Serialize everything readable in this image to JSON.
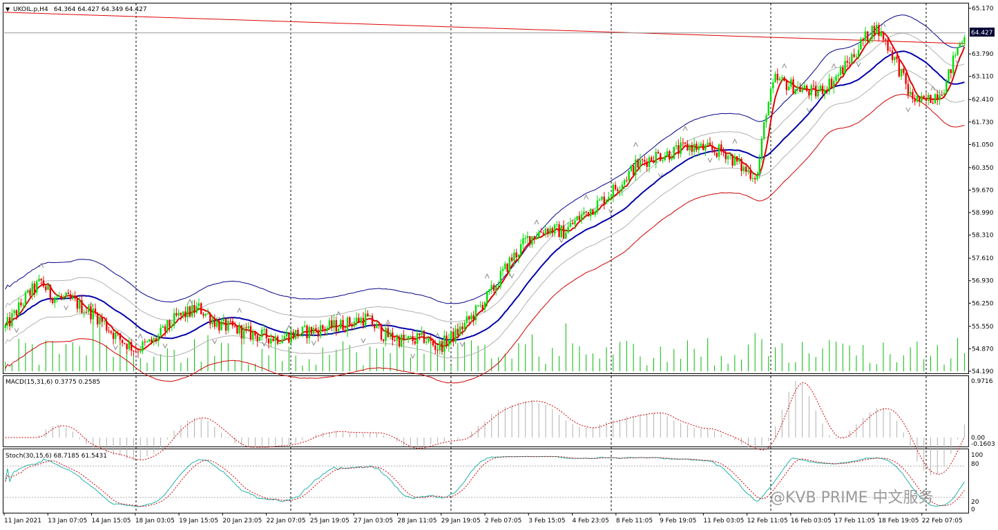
{
  "header": {
    "symbol": "UKOIL.p,H4",
    "ohlc": "64.364 64.427 64.349 64.427",
    "current_price": "64.427"
  },
  "indicators": {
    "macd_label": "MACD(15,31,6) 0.3775 0.2585",
    "stoch_label": "Stoch(30,15,6) 68.7185 61.5431",
    "macd_levels": [
      "0.9716",
      "0.00",
      "-0.1603"
    ],
    "stoch_levels": [
      "100",
      "80",
      "20",
      "0"
    ]
  },
  "watermark": "@KVB PRIME 中文服务",
  "colors": {
    "bull": "#00dd00",
    "bear": "#ee0000",
    "ma_fast": "#dd0000",
    "ma_slow": "#0000aa",
    "band_outer_upper": "#000088",
    "band_outer_lower": "#cc0000",
    "band_inner": "#b0b0b0",
    "volume": "#00bb00",
    "trendline": "#dd0000",
    "stoch_main": "#20b2aa",
    "signal": "#cc0000"
  },
  "chart_data": {
    "type": "candlestick",
    "y_axis_ticks": [
      "65.170",
      "64.427",
      "63.790",
      "63.110",
      "62.410",
      "61.730",
      "61.050",
      "60.350",
      "59.670",
      "58.990",
      "58.310",
      "57.610",
      "56.930",
      "56.250",
      "55.550",
      "54.870",
      "54.190"
    ],
    "ylim": [
      54.19,
      65.17
    ],
    "x_axis_labels": [
      "11 Jan 2021",
      "13 Jan 07:05",
      "14 Jan 15:05",
      "18 Jan 03:05",
      "19 Jan 15:05",
      "20 Jan 23:05",
      "22 Jan 07:05",
      "25 Jan 19:05",
      "27 Jan 03:05",
      "28 Jan 11:05",
      "29 Jan 19:05",
      "2 Feb 07:05",
      "3 Feb 15:05",
      "4 Feb 23:05",
      "8 Feb 11:05",
      "9 Feb 19:05",
      "11 Feb 03:05",
      "12 Feb 11:05",
      "16 Feb 03:05",
      "17 Feb 11:05",
      "18 Feb 19:05",
      "22 Feb 07:05"
    ],
    "price_path": [
      [
        0,
        55.5
      ],
      [
        10,
        56.5
      ],
      [
        16,
        56.9
      ],
      [
        20,
        56.5
      ],
      [
        30,
        56.3
      ],
      [
        40,
        55.9
      ],
      [
        50,
        55.2
      ],
      [
        58,
        54.85
      ],
      [
        66,
        55.1
      ],
      [
        76,
        55.8
      ],
      [
        86,
        56.1
      ],
      [
        95,
        55.6
      ],
      [
        110,
        55.3
      ],
      [
        120,
        55.2
      ],
      [
        135,
        55.4
      ],
      [
        150,
        55.6
      ],
      [
        160,
        55.8
      ],
      [
        168,
        55.3
      ],
      [
        178,
        55.1
      ],
      [
        186,
        55.2
      ],
      [
        192,
        54.9
      ],
      [
        200,
        55.3
      ],
      [
        208,
        55.9
      ],
      [
        216,
        56.6
      ],
      [
        224,
        57.5
      ],
      [
        232,
        58.2
      ],
      [
        240,
        58.5
      ],
      [
        248,
        58.4
      ],
      [
        256,
        58.9
      ],
      [
        264,
        59.3
      ],
      [
        272,
        59.8
      ],
      [
        280,
        60.4
      ],
      [
        288,
        60.7
      ],
      [
        296,
        60.8
      ],
      [
        304,
        61.0
      ],
      [
        312,
        60.9
      ],
      [
        320,
        60.8
      ],
      [
        328,
        60.3
      ],
      [
        334,
        60.1
      ],
      [
        338,
        62.1
      ],
      [
        342,
        63.0
      ],
      [
        350,
        62.8
      ],
      [
        360,
        62.6
      ],
      [
        368,
        63.0
      ],
      [
        374,
        63.5
      ],
      [
        380,
        64.1
      ],
      [
        386,
        64.6
      ],
      [
        390,
        64.3
      ],
      [
        396,
        63.5
      ],
      [
        402,
        62.5
      ],
      [
        408,
        62.3
      ],
      [
        414,
        62.6
      ],
      [
        418,
        62.9
      ],
      [
        422,
        63.8
      ],
      [
        426,
        64.427
      ]
    ]
  }
}
